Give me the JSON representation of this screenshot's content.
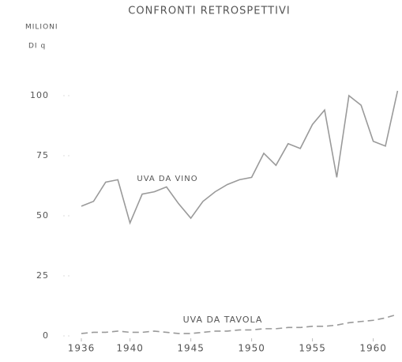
{
  "chart_data": {
    "type": "line",
    "title": "CONFRONTI RETROSPETTIVI",
    "ylabel": [
      "MILIONI",
      "DI q"
    ],
    "x": [
      1936,
      1937,
      1938,
      1939,
      1940,
      1941,
      1942,
      1943,
      1944,
      1945,
      1946,
      1947,
      1948,
      1949,
      1950,
      1951,
      1952,
      1953,
      1954,
      1955,
      1956,
      1957,
      1958,
      1959,
      1960,
      1961,
      1962
    ],
    "series": [
      {
        "name": "UVA DA VINO",
        "color": "#9a9a9a",
        "dash": false,
        "values": [
          54,
          56,
          64,
          65,
          47,
          59,
          60,
          62,
          55,
          49,
          56,
          60,
          63,
          65,
          66,
          76,
          71,
          80,
          78,
          88,
          94,
          66,
          100,
          96,
          81,
          79,
          102
        ]
      },
      {
        "name": "UVA DA TAVOLA",
        "color": "#9a9a9a",
        "dash": true,
        "values": [
          1,
          1.5,
          1.5,
          2,
          1.5,
          1.5,
          2,
          1.5,
          1,
          1,
          1.5,
          2,
          2,
          2.5,
          2.5,
          3,
          3,
          3.5,
          3.5,
          4,
          4,
          4.5,
          5.5,
          6,
          6.5,
          7.5,
          9
        ]
      }
    ],
    "xlim": [
      1935,
      1963
    ],
    "xticks": [
      1936,
      1940,
      1945,
      1950,
      1955,
      1960
    ],
    "ylim": [
      0,
      110
    ],
    "yticks": [
      0,
      25,
      50,
      75,
      100
    ]
  }
}
